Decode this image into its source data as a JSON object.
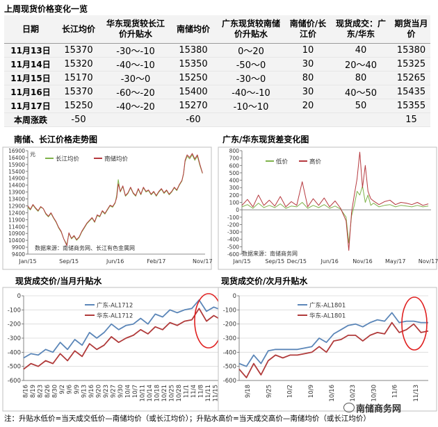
{
  "table": {
    "title": "上周现货价格变化一览",
    "headers": [
      "日期",
      "长江均价",
      "华东现货较长江价升贴水",
      "南储均价",
      "广东现货较南储价升贴水",
      "南储价/长江价",
      "现货成交：广东/华东",
      "期货当月价"
    ],
    "rows": [
      [
        "11月13日",
        "15370",
        "-30～-10",
        "15380",
        "0～20",
        "10",
        "40",
        "15380"
      ],
      [
        "11月14日",
        "15320",
        "-40～-10",
        "15350",
        "-50～0",
        "30",
        "20～40",
        "15325"
      ],
      [
        "11月15日",
        "15170",
        "-30～0",
        "15250",
        "-30～0",
        "80",
        "80",
        "15265"
      ],
      [
        "11月16日",
        "15370",
        "-60～-20",
        "15400",
        "-40～-10",
        "30",
        "40～50",
        "15435"
      ],
      [
        "11月17日",
        "15250",
        "-40～-20",
        "15270",
        "-10～10",
        "20",
        "50",
        "15355"
      ],
      [
        "本周涨跌",
        "-50",
        "",
        "-60",
        "",
        "",
        "",
        "15"
      ]
    ]
  },
  "footer": "注：升贴水低价=当天成交低价—南储均价（或长江均价）；升贴水高价=当天成交高价—南储均价（或长江均价）",
  "watermark": "南储商务网",
  "colors": {
    "green": "#7fb24a",
    "red": "#b5383e",
    "blue": "#5b86b8",
    "darkred": "#b03a3a",
    "circle": "#e02020"
  },
  "chart_data": [
    {
      "type": "line",
      "title": "南储、长江价格走势图",
      "ylabel": "元",
      "source": "数据来源：南储商务网、长江有色金属网",
      "ylim": [
        9400,
        16900
      ],
      "yticks": [
        9400,
        9900,
        10400,
        10900,
        11400,
        11900,
        12400,
        12900,
        13400,
        13900,
        14400,
        14900,
        15400,
        15900,
        16400,
        16900
      ],
      "xtick_labels": [
        "Jan/15",
        "Sep/15",
        "Jun/16",
        "Feb/17",
        "Nov/17"
      ],
      "xlim": [
        0,
        34.5
      ],
      "xtick_pos": [
        0,
        8,
        17,
        25,
        34
      ],
      "series": [
        {
          "name": "长江均价",
          "color": "#7fb24a",
          "x": [
            0,
            0.5,
            1,
            1.5,
            2,
            2.5,
            3,
            3.5,
            4,
            4.5,
            5,
            5.5,
            6,
            6.5,
            7,
            7.3,
            7.6,
            8,
            8.5,
            9,
            9.5,
            10,
            10.5,
            11,
            11.5,
            12,
            12.5,
            13,
            13.5,
            14,
            14.5,
            15,
            15.5,
            16,
            16.5,
            17,
            17.3,
            17.6,
            18,
            18.5,
            19,
            19.5,
            20,
            20.5,
            21,
            21.5,
            22,
            22.5,
            23,
            23.5,
            24,
            24.5,
            25,
            25.5,
            26,
            26.5,
            27,
            27.5,
            28,
            28.5,
            29,
            29.5,
            30,
            30.3,
            30.6,
            31,
            31.5,
            32,
            32.5,
            33,
            33.5,
            34
          ],
          "values": [
            12800,
            12600,
            12950,
            12700,
            12500,
            12800,
            12700,
            12300,
            12100,
            12350,
            12000,
            11700,
            11300,
            11000,
            10500,
            10300,
            10100,
            10900,
            10500,
            10700,
            10400,
            10600,
            11000,
            11300,
            11600,
            11800,
            12000,
            11700,
            12200,
            12100,
            12500,
            12300,
            12600,
            12900,
            12800,
            13100,
            13700,
            14800,
            13900,
            14300,
            13600,
            13800,
            14200,
            13800,
            13600,
            14100,
            13700,
            14200,
            13900,
            14000,
            13700,
            13900,
            13600,
            13900,
            14100,
            13800,
            14000,
            13700,
            13900,
            14200,
            14000,
            14400,
            14700,
            15200,
            16100,
            16500,
            16300,
            16600,
            16200,
            16500,
            15800,
            15250
          ]
        },
        {
          "name": "南储均价",
          "color": "#b5383e",
          "x": [
            0,
            0.5,
            1,
            1.5,
            2,
            2.5,
            3,
            3.5,
            4,
            4.5,
            5,
            5.5,
            6,
            6.5,
            7,
            7.3,
            7.6,
            8,
            8.5,
            9,
            9.5,
            10,
            10.5,
            11,
            11.5,
            12,
            12.5,
            13,
            13.5,
            14,
            14.5,
            15,
            15.5,
            16,
            16.5,
            17,
            17.3,
            17.6,
            18,
            18.5,
            19,
            19.5,
            20,
            20.5,
            21,
            21.5,
            22,
            22.5,
            23,
            23.5,
            24,
            24.5,
            25,
            25.5,
            26,
            26.5,
            27,
            27.5,
            28,
            28.5,
            29,
            29.5,
            30,
            30.3,
            30.6,
            31,
            31.5,
            32,
            32.5,
            33,
            33.5,
            34
          ],
          "values": [
            12900,
            12650,
            13000,
            12750,
            12550,
            12850,
            12700,
            12350,
            12150,
            12400,
            12050,
            11750,
            11350,
            11050,
            10500,
            10250,
            10000,
            10950,
            10550,
            10750,
            10450,
            10650,
            11050,
            11350,
            11650,
            11850,
            12050,
            11750,
            12250,
            12150,
            12550,
            12350,
            12650,
            12950,
            12850,
            13150,
            13500,
            14500,
            13950,
            14350,
            13650,
            13850,
            14250,
            13850,
            13650,
            14150,
            13750,
            14250,
            13950,
            14050,
            13750,
            13950,
            13650,
            13950,
            14150,
            13850,
            14050,
            13750,
            13950,
            14250,
            14050,
            14450,
            14750,
            15250,
            16200,
            16600,
            16400,
            16700,
            16300,
            16600,
            15900,
            15270
          ]
        }
      ]
    },
    {
      "type": "line",
      "title": "广东/华东现货差变化图",
      "source": "数据来源：南储商务网",
      "ylim": [
        -600,
        800
      ],
      "yticks": [
        -600,
        -500,
        -400,
        -300,
        -200,
        -100,
        0,
        100,
        200,
        300,
        400,
        500,
        600,
        700,
        800
      ],
      "xtick_labels": [
        "Jan/15",
        "Sep/15",
        "Dec/15",
        "Jun/16",
        "Nov/16",
        "May/17",
        "Nov/17"
      ],
      "xlim": [
        0,
        34.5
      ],
      "xtick_pos": [
        0,
        6,
        10,
        16,
        22,
        28,
        34
      ],
      "series": [
        {
          "name": "低价",
          "color": "#7fb24a",
          "x": [
            0,
            1,
            2,
            3,
            4,
            5,
            6,
            7,
            8,
            9,
            10,
            11,
            12,
            13,
            14,
            15,
            16,
            17,
            18,
            19,
            19.5,
            20,
            20.5,
            21,
            21.5,
            22,
            22.5,
            23,
            23.5,
            24,
            25,
            26,
            27,
            28,
            29,
            30,
            31,
            32,
            33,
            34
          ],
          "values": [
            40,
            70,
            20,
            90,
            30,
            60,
            30,
            80,
            20,
            50,
            40,
            100,
            20,
            60,
            30,
            70,
            20,
            50,
            10,
            -100,
            -450,
            -80,
            60,
            250,
            200,
            320,
            100,
            200,
            60,
            90,
            40,
            60,
            70,
            40,
            60,
            50,
            40,
            60,
            40,
            50
          ]
        },
        {
          "name": "高价",
          "color": "#b5383e",
          "x": [
            0,
            1,
            2,
            3,
            4,
            5,
            6,
            7,
            8,
            9,
            10,
            11,
            12,
            13,
            14,
            15,
            16,
            17,
            18,
            19,
            19.5,
            20,
            20.5,
            21,
            21.5,
            22,
            22.5,
            23,
            23.5,
            24,
            25,
            26,
            27,
            28,
            29,
            30,
            31,
            32,
            33,
            34
          ],
          "values": [
            60,
            140,
            40,
            200,
            60,
            130,
            50,
            180,
            40,
            110,
            60,
            380,
            40,
            150,
            60,
            160,
            40,
            120,
            20,
            -150,
            -550,
            -30,
            200,
            420,
            780,
            300,
            600,
            250,
            150,
            120,
            70,
            110,
            130,
            70,
            100,
            90,
            70,
            100,
            60,
            80
          ]
        }
      ]
    },
    {
      "type": "line",
      "title": "现货成交价/当月升贴水",
      "ylim": [
        -600,
        0
      ],
      "yticks": [
        -600,
        -500,
        -400,
        -300,
        -200,
        -100,
        0
      ],
      "xtick_labels": [
        "8/16",
        "8/19",
        "8/23",
        "8/26",
        "8/30",
        "9/2",
        "9/6",
        "9/9",
        "9/13",
        "9/16",
        "9/20",
        "9/23",
        "9/27",
        "9/30",
        "10/4",
        "10/7",
        "10/11",
        "10/14",
        "10/18",
        "10/21",
        "10/25",
        "10/28",
        "11/1",
        "11/4",
        "11/8",
        "11/11",
        "11/15"
      ],
      "series": [
        {
          "name": "广东-AL1712",
          "color": "#5b86b8",
          "values": [
            -440,
            -410,
            -420,
            -380,
            -400,
            -330,
            -380,
            -310,
            -350,
            -260,
            -300,
            -260,
            -200,
            -240,
            -210,
            -200,
            -160,
            -200,
            -130,
            -150,
            -100,
            -120,
            -100,
            -90,
            -30,
            -110,
            -80,
            -100
          ]
        },
        {
          "name": "华东-AL1712",
          "color": "#b03a3a",
          "values": [
            -520,
            -480,
            -500,
            -460,
            -480,
            -410,
            -460,
            -390,
            -430,
            -340,
            -380,
            -350,
            -290,
            -330,
            -300,
            -280,
            -240,
            -270,
            -220,
            -240,
            -190,
            -210,
            -180,
            -170,
            -90,
            -180,
            -140,
            -170
          ]
        }
      ]
    },
    {
      "type": "line",
      "title": "现货成交价/次月升贴水",
      "ylim": [
        -600,
        0
      ],
      "yticks": [
        -600,
        -500,
        -400,
        -300,
        -200,
        -100,
        0
      ],
      "xtick_labels": [
        "9/18",
        "9/25",
        "10/2",
        "10/9",
        "10/16",
        "10/23",
        "10/30",
        "11/6",
        "11/13"
      ],
      "series": [
        {
          "name": "广东-AL1801",
          "color": "#5b86b8",
          "values": [
            -480,
            -500,
            -420,
            -480,
            -390,
            -380,
            -380,
            -380,
            -380,
            -370,
            -360,
            -300,
            -330,
            -270,
            -240,
            -210,
            -200,
            -220,
            -190,
            -170,
            -180,
            -120,
            -190,
            -180,
            -180,
            -190,
            -190
          ]
        },
        {
          "name": "华东-AL1801",
          "color": "#b03a3a",
          "values": [
            -520,
            -580,
            -480,
            -560,
            -460,
            -420,
            -440,
            -420,
            -420,
            -410,
            -400,
            -360,
            -400,
            -320,
            -310,
            -280,
            -280,
            -320,
            -280,
            -260,
            -270,
            -190,
            -260,
            -240,
            -200,
            -260,
            -250
          ]
        }
      ]
    }
  ]
}
